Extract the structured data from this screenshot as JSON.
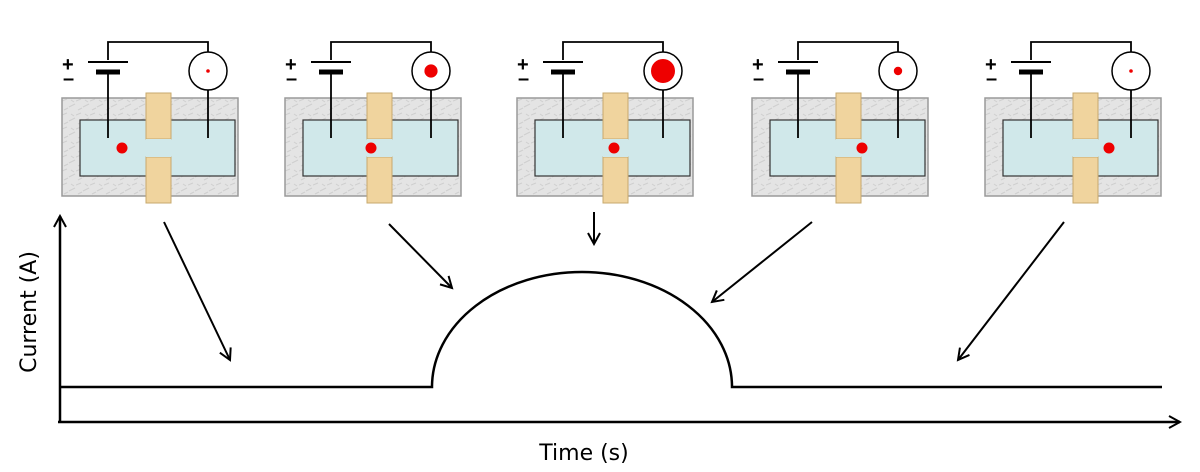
{
  "axes": {
    "x_label": "Time (s)",
    "y_label": "Current (A)"
  },
  "battery": {
    "plus_symbol": "+",
    "minus_symbol": "–"
  },
  "colors": {
    "background": "#ffffff",
    "line": "#000000",
    "chamber_fill": "#d0e8ea",
    "membrane_fill": "#f0d49e",
    "housing_fill": "#e3e3e3",
    "particle": "#ee0000"
  },
  "stages": [
    {
      "name": "particle-approaching",
      "meter_dot_relative_size": 0.15,
      "particle_position": "left-chamber"
    },
    {
      "name": "particle-entering-pore",
      "meter_dot_relative_size": 0.55,
      "particle_position": "pore-entrance"
    },
    {
      "name": "particle-in-pore",
      "meter_dot_relative_size": 1.0,
      "particle_position": "pore-center"
    },
    {
      "name": "particle-exiting-pore",
      "meter_dot_relative_size": 0.35,
      "particle_position": "pore-exit"
    },
    {
      "name": "particle-passed",
      "meter_dot_relative_size": 0.15,
      "particle_position": "right-chamber"
    }
  ],
  "current_trace": {
    "shape": "baseline with single semicircular pulse",
    "baseline": "low",
    "pulse": "rises and falls while particle transits the pore"
  }
}
